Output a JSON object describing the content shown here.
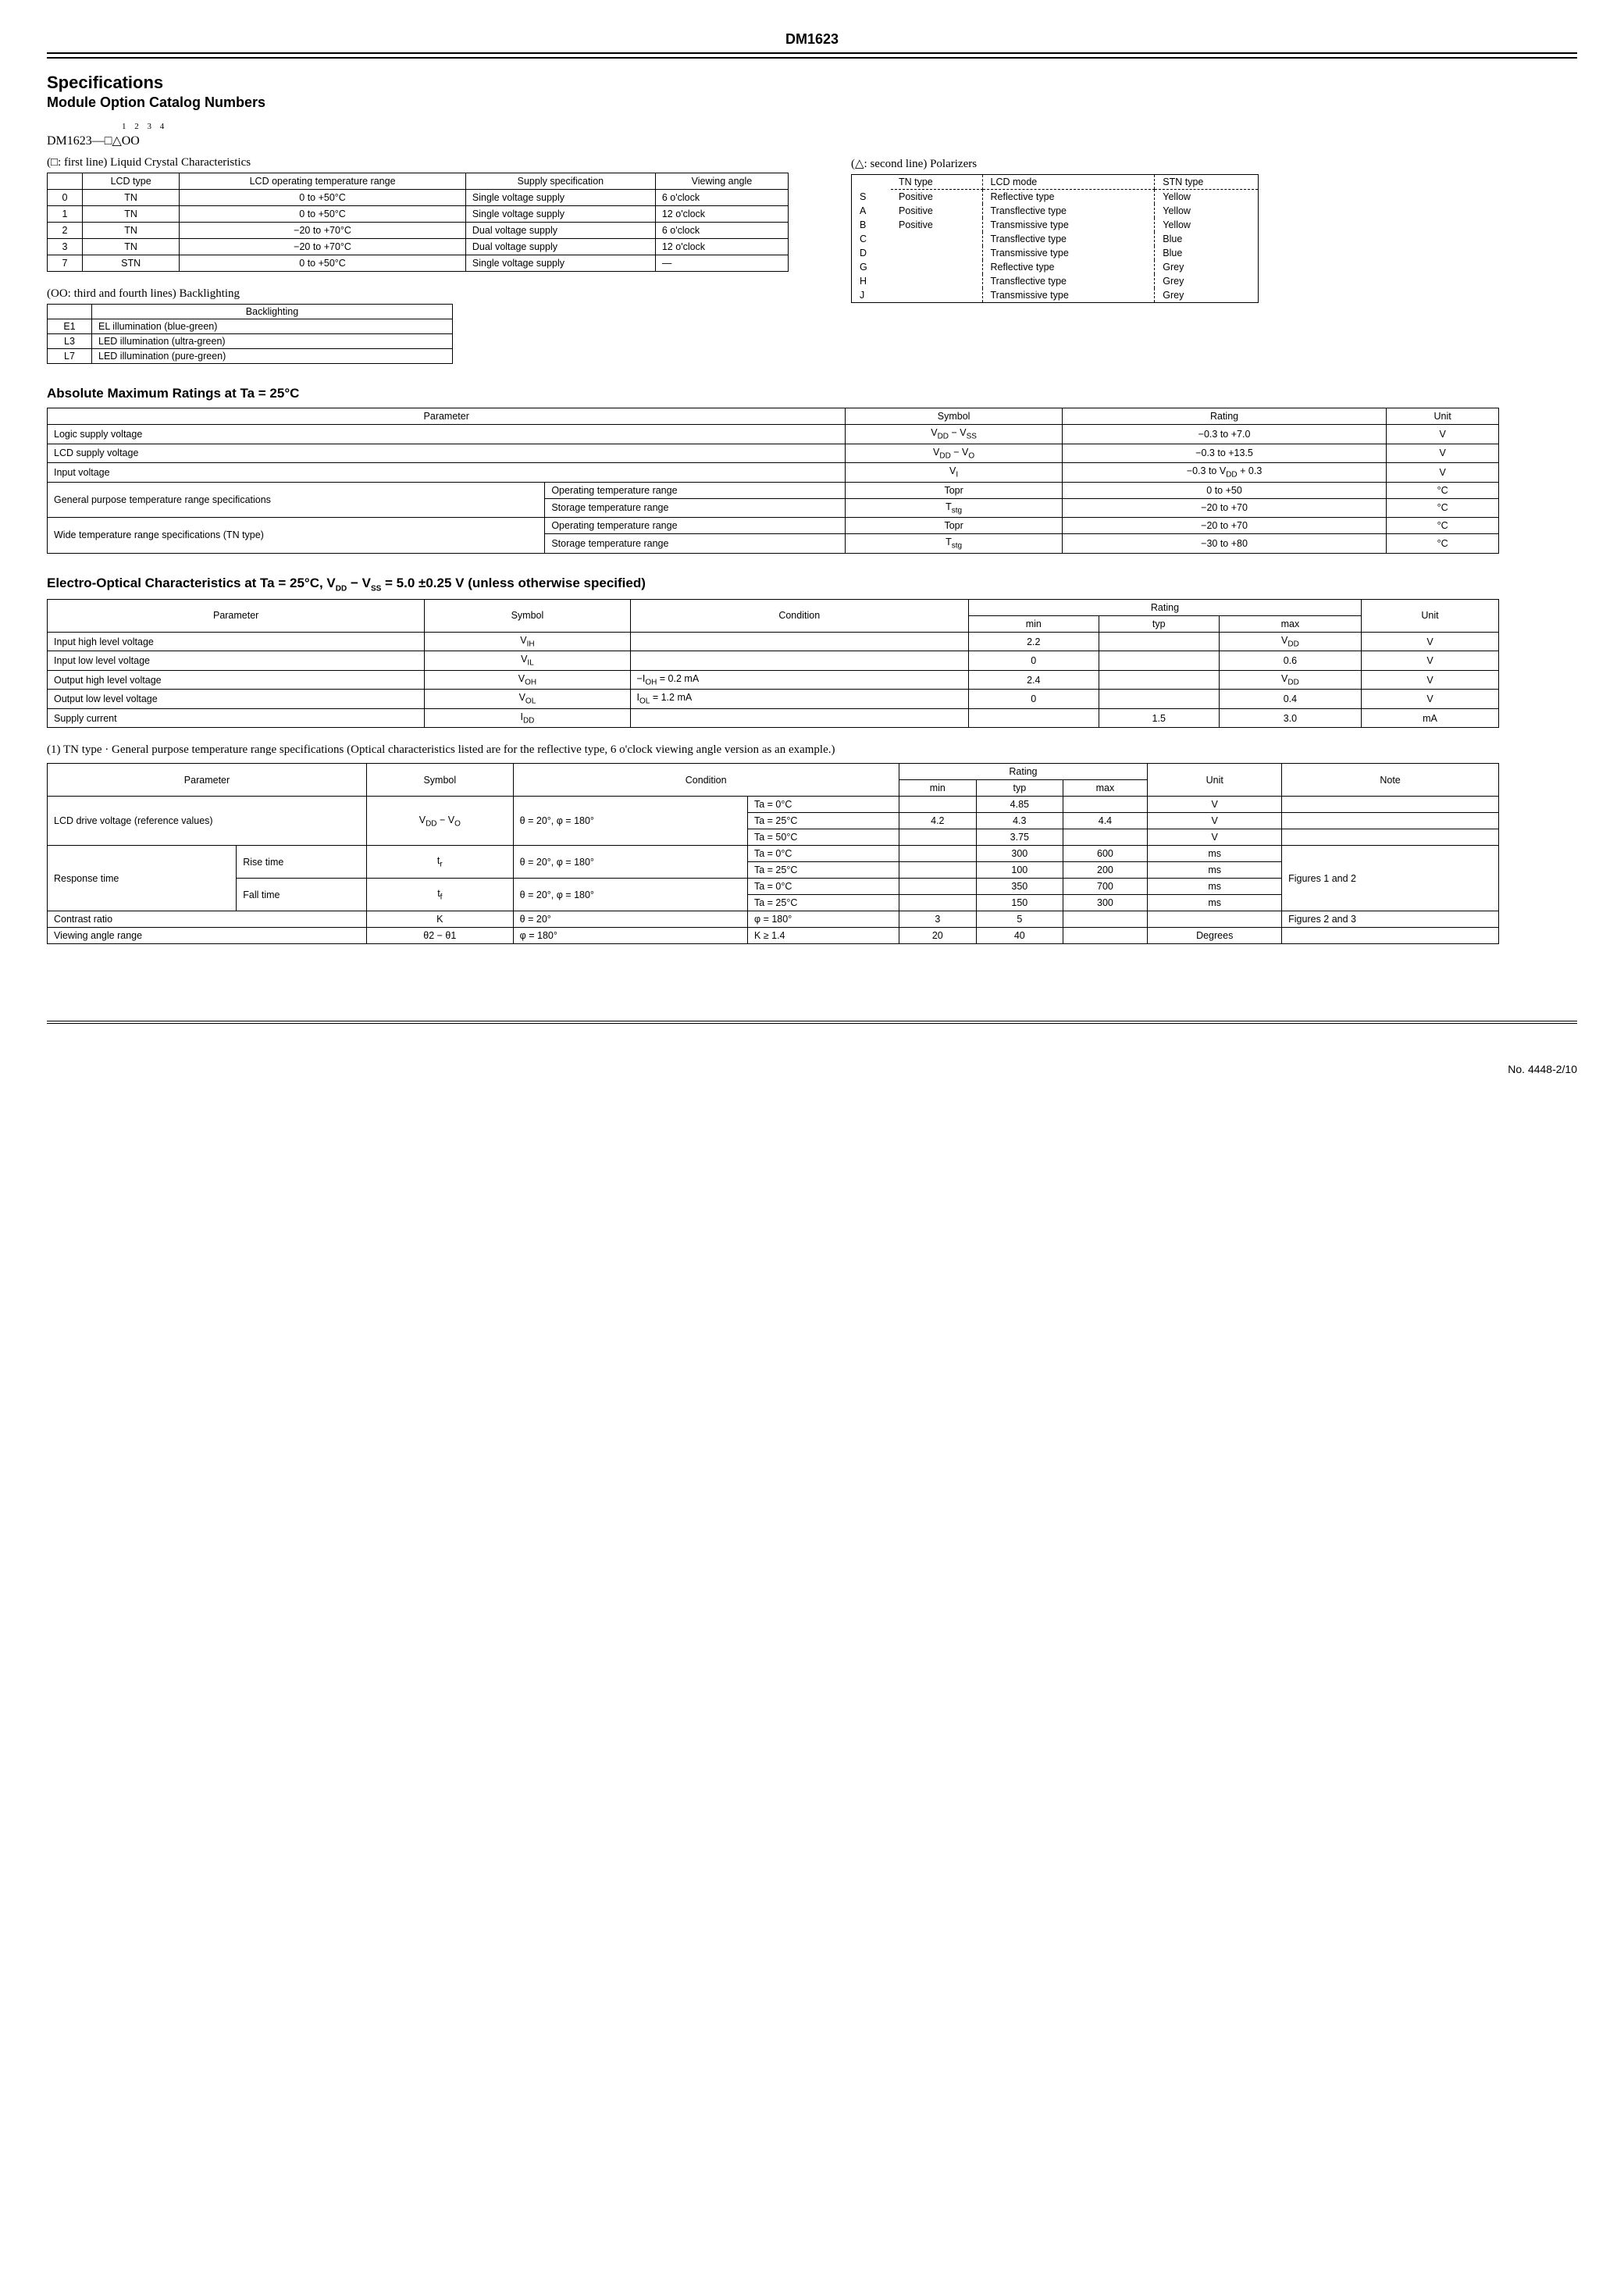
{
  "doc_title": "DM1623",
  "h1": "Specifications",
  "h2": "Module Option Catalog Numbers",
  "ordering_prefix": "DM1623—",
  "ordering_boxes": "□△OO",
  "ordering_indices": "1 2 3 4",
  "caption_sq": "(□: first line) Liquid Crystal Characteristics",
  "caption_tri": "(△: second line) Polarizers",
  "caption_oo": "(OO: third and fourth lines) Backlighting",
  "lcd_table": {
    "headers": [
      "",
      "LCD type",
      "LCD operating temperature range",
      "Supply specification",
      "Viewing angle"
    ],
    "rows": [
      [
        "0",
        "TN",
        "0 to +50°C",
        "Single voltage supply",
        "6 o'clock"
      ],
      [
        "1",
        "TN",
        "0 to +50°C",
        "Single voltage supply",
        "12 o'clock"
      ],
      [
        "2",
        "TN",
        "−20 to +70°C",
        "Dual voltage supply",
        "6 o'clock"
      ],
      [
        "3",
        "TN",
        "−20 to +70°C",
        "Dual voltage supply",
        "12 o'clock"
      ],
      [
        "7",
        "STN",
        "0 to +50°C",
        "Single voltage supply",
        "—"
      ]
    ]
  },
  "pol_table": {
    "headers": [
      "",
      "TN type",
      "LCD mode",
      "STN type"
    ],
    "rows": [
      [
        "S",
        "Positive",
        "Reflective type",
        "Yellow"
      ],
      [
        "A",
        "Positive",
        "Transflective type",
        "Yellow"
      ],
      [
        "B",
        "Positive",
        "Transmissive type",
        "Yellow"
      ],
      [
        "C",
        "",
        "Transflective type",
        "Blue"
      ],
      [
        "D",
        "",
        "Transmissive type",
        "Blue"
      ],
      [
        "G",
        "",
        "Reflective type",
        "Grey"
      ],
      [
        "H",
        "",
        "Transflective type",
        "Grey"
      ],
      [
        "J",
        "",
        "Transmissive type",
        "Grey"
      ]
    ]
  },
  "back_table": {
    "header": "Backlighting",
    "rows": [
      [
        "E1",
        "EL illumination (blue-green)"
      ],
      [
        "L3",
        "LED illumination (ultra-green)"
      ],
      [
        "L7",
        "LED illumination (pure-green)"
      ]
    ]
  },
  "amr_title": "Absolute Maximum Ratings at Ta = 25°C",
  "amr_table": {
    "headers": [
      "Parameter",
      "",
      "Symbol",
      "Rating",
      "Unit"
    ],
    "rows": [
      [
        "Logic supply voltage",
        "",
        "V_DD − V_SS",
        "−0.3 to +7.0",
        "V"
      ],
      [
        "LCD supply voltage",
        "",
        "V_DD − V_O",
        "−0.3 to +13.5",
        "V"
      ],
      [
        "Input voltage",
        "",
        "V_I",
        "−0.3 to V_DD + 0.3",
        "V"
      ],
      [
        "General purpose temperature range specifications",
        "Operating temperature range",
        "Topr",
        "0 to +50",
        "°C"
      ],
      [
        "",
        "Storage temperature range",
        "T_stg",
        "−20 to +70",
        "°C"
      ],
      [
        "Wide temperature range specifications (TN type)",
        "Operating temperature range",
        "Topr",
        "−20 to +70",
        "°C"
      ],
      [
        "",
        "Storage temperature range",
        "T_stg",
        "−30 to +80",
        "°C"
      ]
    ]
  },
  "eoc_title": "Electro-Optical Characteristics at Ta = 25°C, V_DD − V_SS = 5.0 ±0.25 V (unless otherwise specified)",
  "eoc_table": {
    "headers": [
      "Parameter",
      "Symbol",
      "Condition",
      "min",
      "typ",
      "max",
      "Unit"
    ],
    "rows": [
      [
        "Input high level voltage",
        "V_IH",
        "",
        "2.2",
        "",
        "V_DD",
        "V"
      ],
      [
        "Input low level voltage",
        "V_IL",
        "",
        "0",
        "",
        "0.6",
        "V"
      ],
      [
        "Output high level voltage",
        "V_OH",
        "−I_OH = 0.2 mA",
        "2.4",
        "",
        "V_DD",
        "V"
      ],
      [
        "Output low level voltage",
        "V_OL",
        "I_OL = 1.2 mA",
        "0",
        "",
        "0.4",
        "V"
      ],
      [
        "Supply current",
        "I_DD",
        "",
        "",
        "1.5",
        "3.0",
        "mA"
      ]
    ]
  },
  "note1": "(1) TN type · General purpose temperature range specifications (Optical characteristics listed are for the reflective type, 6 o'clock viewing angle version as an example.)",
  "tn_table": {
    "headers": [
      "Parameter",
      "",
      "Symbol",
      "Condition",
      "",
      "min",
      "typ",
      "max",
      "Unit",
      "Note"
    ],
    "rows": [
      [
        "LCD drive voltage (reference values)",
        "",
        "V_DD − V_O",
        "θ = 20°, φ = 180°",
        "Ta = 0°C",
        "",
        "4.85",
        "",
        "V",
        ""
      ],
      [
        "",
        "",
        "",
        "",
        "Ta = 25°C",
        "4.2",
        "4.3",
        "4.4",
        "V",
        ""
      ],
      [
        "",
        "",
        "",
        "",
        "Ta = 50°C",
        "",
        "3.75",
        "",
        "V",
        ""
      ],
      [
        "Response time",
        "Rise time",
        "t_r",
        "θ = 20°, φ = 180°",
        "Ta = 0°C",
        "",
        "300",
        "600",
        "ms",
        "Figures 1 and 2"
      ],
      [
        "",
        "",
        "",
        "",
        "Ta = 25°C",
        "",
        "100",
        "200",
        "ms",
        ""
      ],
      [
        "",
        "Fall time",
        "t_f",
        "θ = 20°, φ = 180°",
        "Ta = 0°C",
        "",
        "350",
        "700",
        "ms",
        ""
      ],
      [
        "",
        "",
        "",
        "",
        "Ta = 25°C",
        "",
        "150",
        "300",
        "ms",
        ""
      ],
      [
        "Contrast ratio",
        "",
        "K",
        "θ = 20°",
        "φ = 180°",
        "3",
        "5",
        "",
        "",
        "Figures 2 and 3"
      ],
      [
        "Viewing angle range",
        "",
        "θ2 − θ1",
        "φ = 180°",
        "K ≥ 1.4",
        "20",
        "40",
        "",
        "Degrees",
        ""
      ]
    ]
  },
  "footer": "No. 4448-2/10"
}
